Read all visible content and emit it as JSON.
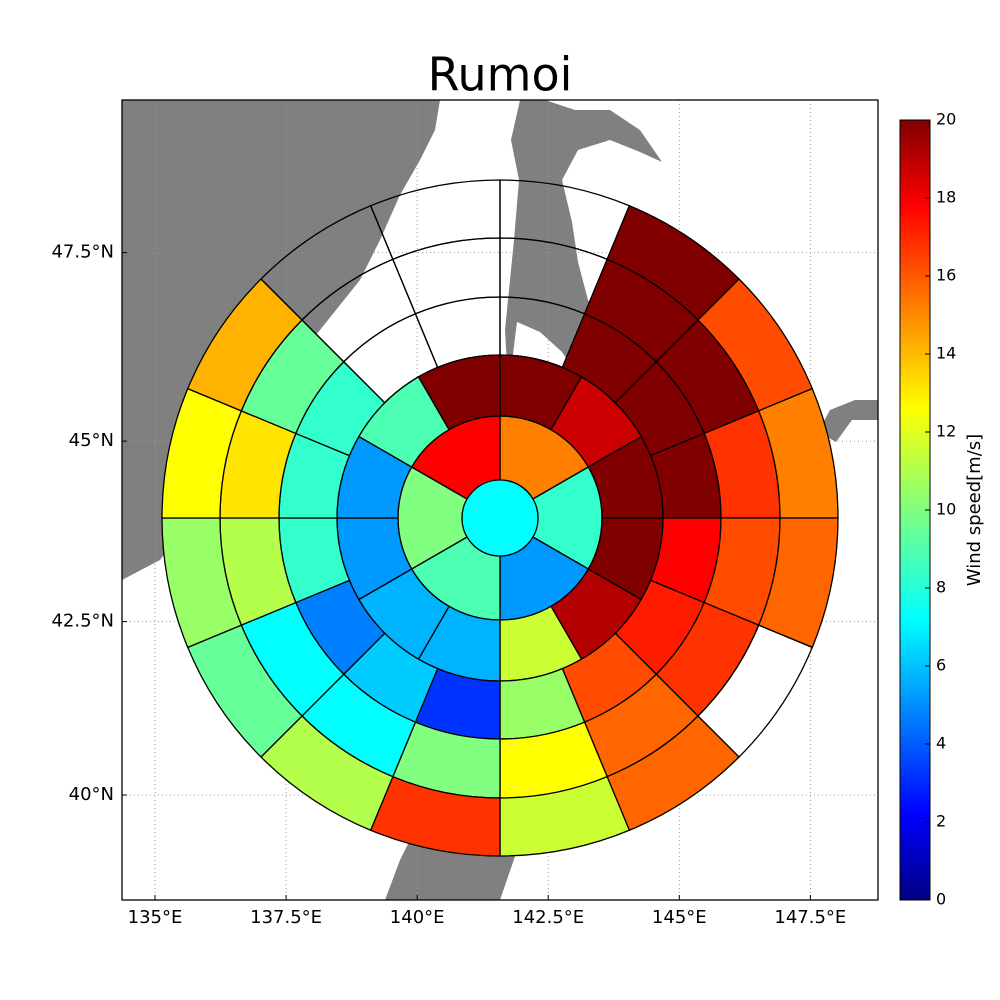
{
  "chart_data": {
    "type": "polar_map",
    "title": "Rumoi",
    "center_value": 7.5,
    "rings": [
      {
        "values": [
          15,
          8.5,
          5.5,
          9,
          10,
          17.5
        ]
      },
      {
        "values": [
          20,
          18.5,
          20,
          20,
          19,
          11.5,
          6,
          6,
          5.5,
          5.5,
          9,
          20
        ]
      },
      {
        "values": [
          null,
          20,
          20,
          20,
          17.5,
          17,
          16,
          10.5,
          3.5,
          6.5,
          5,
          8.5,
          8.5,
          8.5,
          null,
          null
        ]
      },
      {
        "values": [
          null,
          20,
          20,
          16.5,
          16,
          16.5,
          15.5,
          12.5,
          10,
          7.5,
          7.5,
          11,
          13,
          9.5,
          null,
          null
        ]
      },
      {
        "values": [
          null,
          20,
          16,
          15,
          15.5,
          null,
          15.5,
          11.5,
          16.5,
          11,
          9.5,
          10.5,
          12.5,
          14,
          null,
          null
        ]
      }
    ],
    "xlim": [
      134.37,
      148.79
    ],
    "ylim": [
      38.44,
      49.44
    ],
    "xticks": [
      {
        "value": 135,
        "label": "135°E"
      },
      {
        "value": 137.5,
        "label": "137.5°E"
      },
      {
        "value": 140,
        "label": "140°E"
      },
      {
        "value": 142.5,
        "label": "142.5°E"
      },
      {
        "value": 145,
        "label": "145°E"
      },
      {
        "value": 147.5,
        "label": "147.5°E"
      }
    ],
    "yticks": [
      {
        "value": 40,
        "label": "40°N"
      },
      {
        "value": 42.5,
        "label": "42.5°N"
      },
      {
        "value": 45,
        "label": "45°N"
      },
      {
        "value": 47.5,
        "label": "47.5°N"
      }
    ],
    "grid": true,
    "colorbar": {
      "label": "Wind speed[m/s]",
      "clim": [
        0,
        20
      ],
      "ticks": [
        0,
        2,
        4,
        6,
        8,
        10,
        12,
        14,
        16,
        18,
        20
      ]
    }
  }
}
